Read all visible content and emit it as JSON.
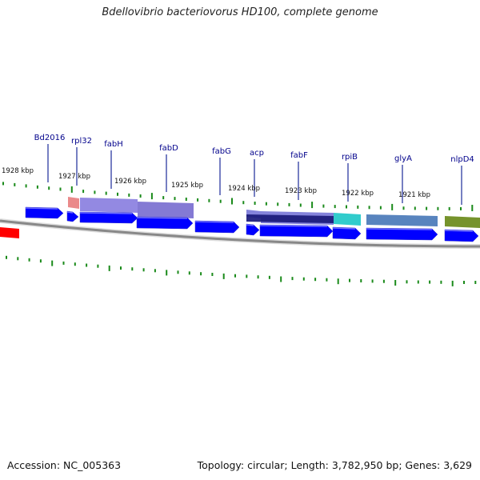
{
  "title": "Bdellovibrio bacteriovorus HD100, complete genome",
  "footer": {
    "accession": "Accession: NC_005363",
    "summary": "Topology: circular; Length: 3,782,950 bp; Genes: 3,629"
  },
  "colors": {
    "backbone": "#888888",
    "tick": "#1a8a1a",
    "label": "#00008b",
    "forward_cds": "#0000ff",
    "reverse_cds_left": "#ff0000"
  },
  "scale_labels": [
    "1928 kbp",
    "1927 kbp",
    "1926 kbp",
    "1925 kbp",
    "1924 kbp",
    "1923 kbp",
    "1922 kbp",
    "1921 kbp"
  ],
  "gene_labels": [
    "Bd2016",
    "rpl32",
    "fabH",
    "fabD",
    "fabG",
    "acp",
    "fabF",
    "rpiB",
    "glyA",
    "nlpD4"
  ],
  "function_colors": [
    "#e88080",
    "#8a7fe0",
    "#7a6fd0",
    "#7a78d8",
    "#1a1a7a",
    "#20c8c8",
    "#4a7ab8",
    "#6a8a1a"
  ]
}
